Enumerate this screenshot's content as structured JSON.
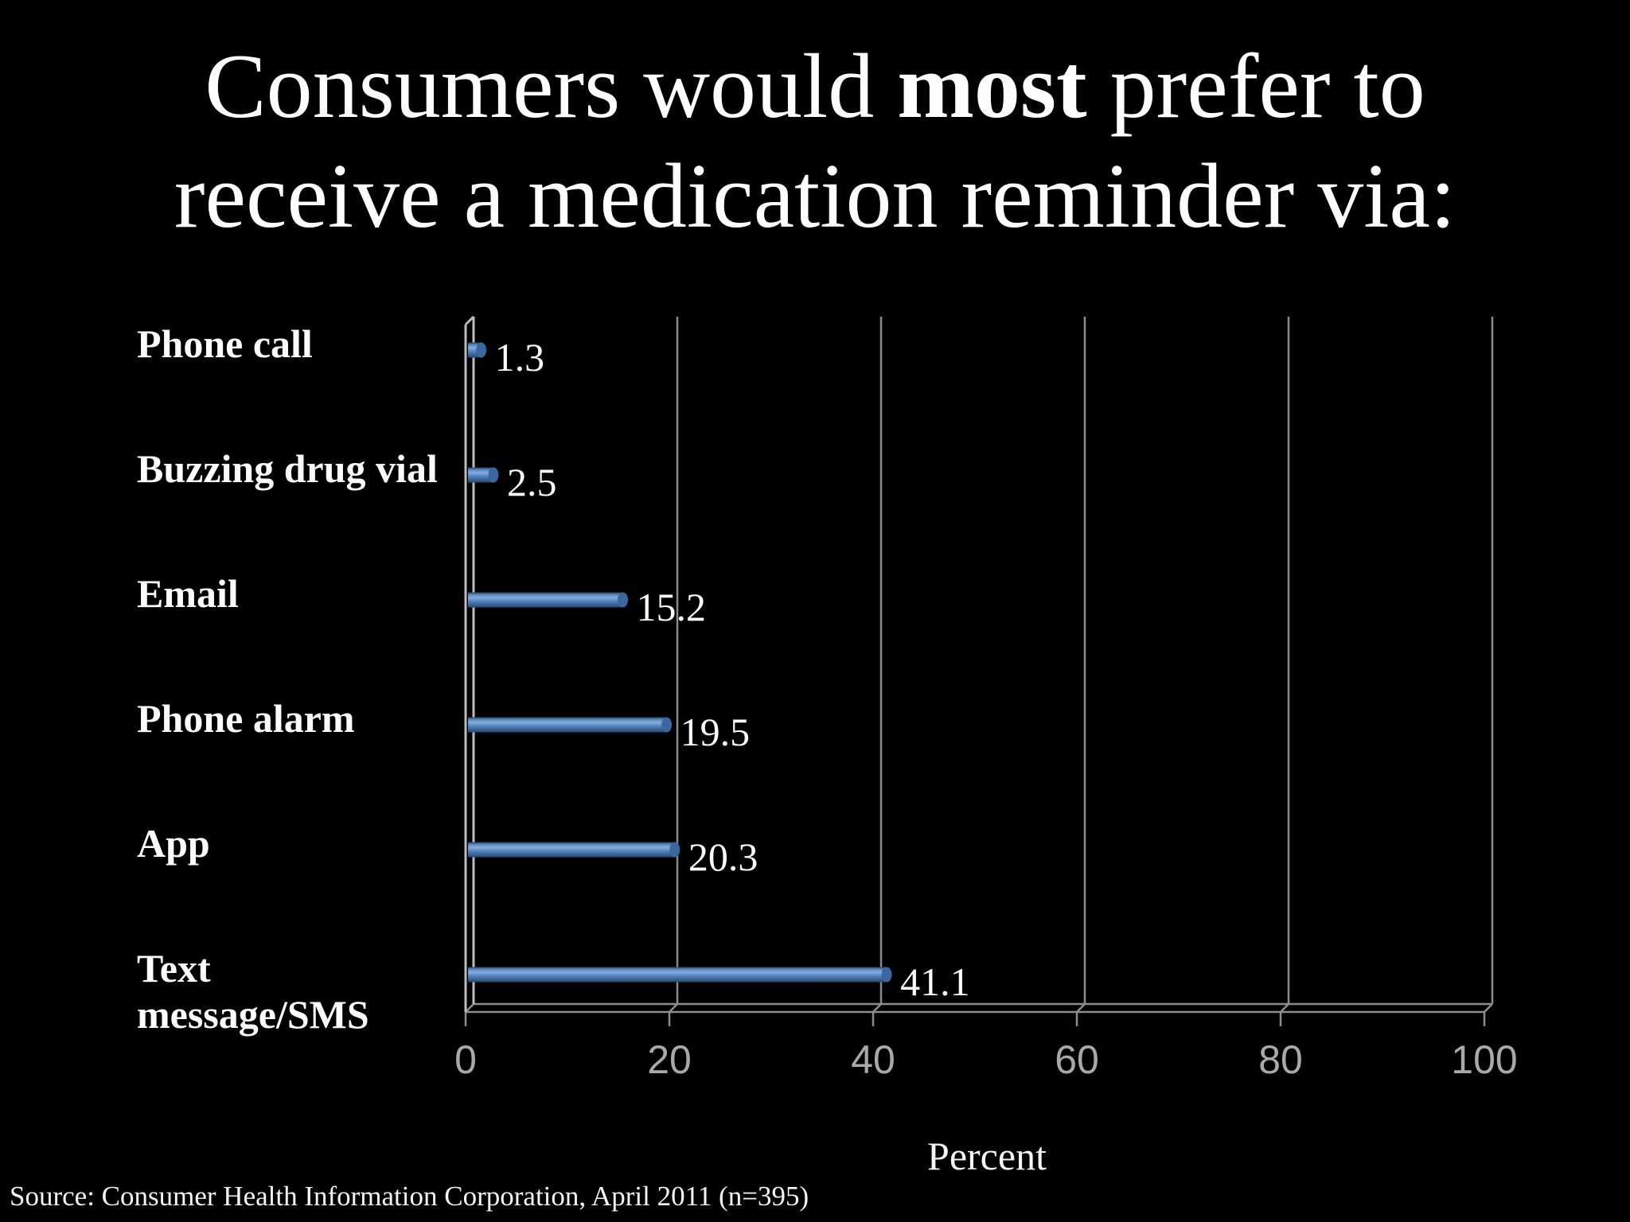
{
  "slide": {
    "title": {
      "pre": "Consumers would ",
      "bold": "most",
      "post": " prefer to",
      "line2": "receive a medication reminder via:"
    },
    "source": "Source: Consumer Health Information Corporation, April 2011 (n=395)"
  },
  "chart_data": {
    "type": "bar",
    "orientation": "horizontal",
    "title": "Consumers would most prefer to receive a medication reminder via:",
    "categories": [
      "Phone call",
      "Buzzing drug vial",
      "Email",
      "Phone alarm",
      "App",
      "Text message/SMS"
    ],
    "values": [
      1.3,
      2.5,
      15.2,
      19.5,
      20.3,
      41.1
    ],
    "value_labels": [
      "1.3",
      "2.5",
      "15.2",
      "19.5",
      "20.3",
      "41.1"
    ],
    "xlabel": "Percent",
    "xticks": [
      0,
      20,
      40,
      60,
      80,
      100
    ],
    "xlim": [
      0,
      100
    ],
    "grid": true,
    "legend": "none",
    "style_3d": true,
    "colors": {
      "background": "#000000",
      "bar": "#4f81bd",
      "bar_highlight": "#85acdc",
      "bar_shadow": "#27476b",
      "bar_cap": "#3b669e",
      "gridline": "#8c8c8c",
      "axis": "#bdbdbd",
      "tick_text": "#a9a9a9",
      "text": "#fdfdfd"
    }
  }
}
